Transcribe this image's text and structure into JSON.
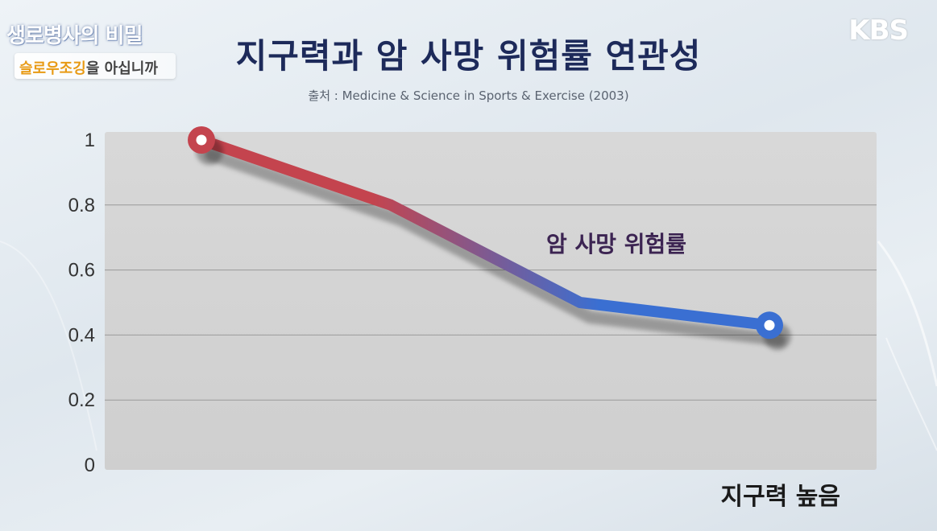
{
  "header": {
    "show_title": "생로병사의 비밀",
    "show_subtitle_highlight": "슬로우조깅",
    "show_subtitle_rest": "을 아십니까",
    "broadcaster": "KBS"
  },
  "colors": {
    "line_start": "#c4444e",
    "line_end": "#3a6fd2",
    "title": "#1d2a5a",
    "annotation": "#3c2452"
  },
  "chart_data": {
    "type": "line",
    "title": "지구력과 암 사망 위험률 연관성",
    "subtitle": "출처 : Medicine & Science in Sports & Exercise (2003)",
    "xlabel": "지구력 높음",
    "ylabel": "",
    "ylim": [
      0,
      1
    ],
    "yticks": [
      "0",
      "0.2",
      "0.4",
      "0.6",
      "0.8",
      "1"
    ],
    "grid": true,
    "series": [
      {
        "name": "암 사망 위험률",
        "x": [
          1,
          2,
          3,
          4
        ],
        "values": [
          1.0,
          0.8,
          0.5,
          0.43
        ]
      }
    ]
  }
}
